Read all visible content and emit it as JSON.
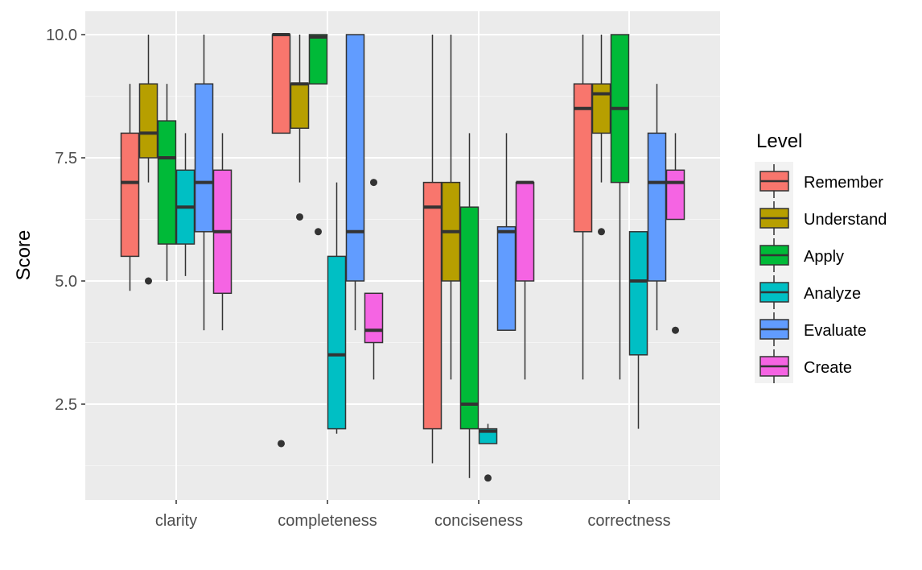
{
  "chart_data": {
    "type": "boxplot",
    "title": "",
    "xlabel": "",
    "ylabel": "Score",
    "ylim": [
      0.6,
      10.5
    ],
    "yticks": [
      2.5,
      5.0,
      7.5,
      10.0
    ],
    "ytick_labels": [
      "2.5",
      "5.0",
      "7.5",
      "10.0"
    ],
    "categories": [
      "clarity",
      "completeness",
      "conciseness",
      "correctness"
    ],
    "legend_title": "Level",
    "legend_position": "right",
    "series": [
      {
        "name": "Remember",
        "color": "#F8766D",
        "boxes": [
          {
            "category": "clarity",
            "min": 4.8,
            "q1": 5.5,
            "median": 7.0,
            "q3": 8.0,
            "max": 9.0,
            "outliers": []
          },
          {
            "category": "completeness",
            "min": 8.0,
            "q1": 8.0,
            "median": 10.0,
            "q3": 10.0,
            "max": 10.0,
            "outliers": [
              1.7
            ]
          },
          {
            "category": "conciseness",
            "min": 1.3,
            "q1": 2.0,
            "median": 6.5,
            "q3": 7.0,
            "max": 10.0,
            "outliers": []
          },
          {
            "category": "correctness",
            "min": 3.0,
            "q1": 6.0,
            "median": 8.5,
            "q3": 9.0,
            "max": 10.0,
            "outliers": []
          }
        ]
      },
      {
        "name": "Understand",
        "color": "#B79F00",
        "boxes": [
          {
            "category": "clarity",
            "min": 7.0,
            "q1": 7.5,
            "median": 8.0,
            "q3": 9.0,
            "max": 10.0,
            "outliers": [
              5.0
            ]
          },
          {
            "category": "completeness",
            "min": 7.0,
            "q1": 8.1,
            "median": 9.0,
            "q3": 9.0,
            "max": 10.0,
            "outliers": [
              6.3
            ]
          },
          {
            "category": "conciseness",
            "min": 3.0,
            "q1": 5.0,
            "median": 6.0,
            "q3": 7.0,
            "max": 10.0,
            "outliers": []
          },
          {
            "category": "correctness",
            "min": 7.0,
            "q1": 8.0,
            "median": 8.8,
            "q3": 9.0,
            "max": 10.0,
            "outliers": [
              6.0
            ]
          }
        ]
      },
      {
        "name": "Apply",
        "color": "#00BA38",
        "boxes": [
          {
            "category": "clarity",
            "min": 5.0,
            "q1": 5.75,
            "median": 7.5,
            "q3": 8.25,
            "max": 9.0,
            "outliers": []
          },
          {
            "category": "completeness",
            "min": 9.0,
            "q1": 9.0,
            "median": 9.95,
            "q3": 10.0,
            "max": 10.0,
            "outliers": [
              6.0
            ]
          },
          {
            "category": "conciseness",
            "min": 1.0,
            "q1": 2.0,
            "median": 2.5,
            "q3": 6.5,
            "max": 8.0,
            "outliers": []
          },
          {
            "category": "correctness",
            "min": 3.0,
            "q1": 7.0,
            "median": 8.5,
            "q3": 10.0,
            "max": 10.0,
            "outliers": []
          }
        ]
      },
      {
        "name": "Analyze",
        "color": "#00BFC4",
        "boxes": [
          {
            "category": "clarity",
            "min": 5.1,
            "q1": 5.75,
            "median": 6.5,
            "q3": 7.25,
            "max": 8.0,
            "outliers": []
          },
          {
            "category": "completeness",
            "min": 1.9,
            "q1": 2.0,
            "median": 3.5,
            "q3": 5.5,
            "max": 7.0,
            "outliers": []
          },
          {
            "category": "conciseness",
            "min": 1.7,
            "q1": 1.7,
            "median": 1.95,
            "q3": 2.0,
            "max": 2.1,
            "outliers": [
              1.0
            ]
          },
          {
            "category": "correctness",
            "min": 2.0,
            "q1": 3.5,
            "median": 5.0,
            "q3": 6.0,
            "max": 6.0,
            "outliers": []
          }
        ]
      },
      {
        "name": "Evaluate",
        "color": "#619CFF",
        "boxes": [
          {
            "category": "clarity",
            "min": 4.0,
            "q1": 6.0,
            "median": 7.0,
            "q3": 9.0,
            "max": 10.0,
            "outliers": []
          },
          {
            "category": "completeness",
            "min": 4.0,
            "q1": 5.0,
            "median": 6.0,
            "q3": 10.0,
            "max": 10.0,
            "outliers": []
          },
          {
            "category": "conciseness",
            "min": 4.0,
            "q1": 4.0,
            "median": 6.0,
            "q3": 6.1,
            "max": 8.0,
            "outliers": []
          },
          {
            "category": "correctness",
            "min": 4.0,
            "q1": 5.0,
            "median": 7.0,
            "q3": 8.0,
            "max": 9.0,
            "outliers": []
          }
        ]
      },
      {
        "name": "Create",
        "color": "#F564E3",
        "boxes": [
          {
            "category": "clarity",
            "min": 4.0,
            "q1": 4.75,
            "median": 6.0,
            "q3": 7.25,
            "max": 8.0,
            "outliers": []
          },
          {
            "category": "completeness",
            "min": 3.0,
            "q1": 3.75,
            "median": 4.0,
            "q3": 4.75,
            "max": 4.75,
            "outliers": [
              7.0
            ]
          },
          {
            "category": "conciseness",
            "min": 3.0,
            "q1": 5.0,
            "median": 7.0,
            "q3": 7.0,
            "max": 7.0,
            "outliers": []
          },
          {
            "category": "correctness",
            "min": 6.25,
            "q1": 6.25,
            "median": 7.0,
            "q3": 7.25,
            "max": 8.0,
            "outliers": [
              4.0
            ]
          }
        ]
      }
    ]
  },
  "colors": {
    "panel_background": "#EBEBEB",
    "grid_major": "#FFFFFF",
    "grid_minor": "#F5F5F5",
    "box_outline": "#333333",
    "axis_text": "#4D4D4D"
  }
}
